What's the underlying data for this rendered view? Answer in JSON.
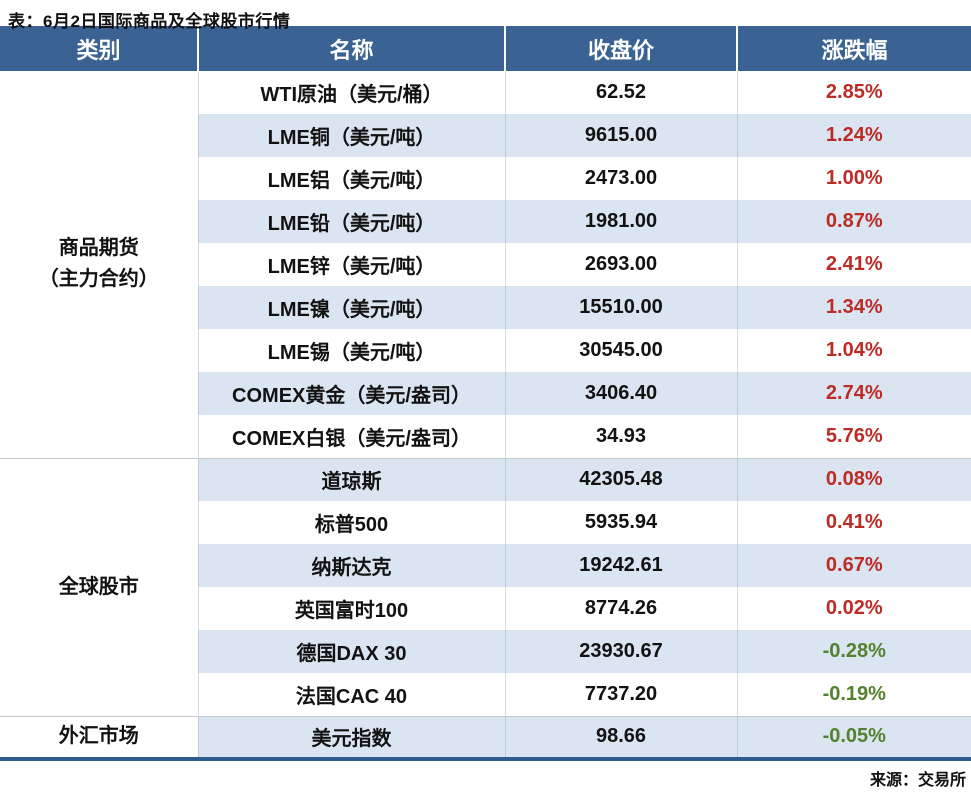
{
  "title": "表：6月2日国际商品及全球股市行情",
  "source": "来源：交易所",
  "colors": {
    "header_bg": "#3a6292",
    "stripe": "#dbe5f1",
    "up_red": "#bd2b25",
    "down_green": "#54812f",
    "bottom_border": "#2f5c8e"
  },
  "table": {
    "headers": [
      "类别",
      "名称",
      "收盘价",
      "涨跌幅"
    ],
    "groups": [
      {
        "category": "商品期货\n（主力合约）",
        "rows": [
          {
            "name": "WTI原油（美元/桶）",
            "close": "62.52",
            "change": "2.85%",
            "direction": "up"
          },
          {
            "name": "LME铜（美元/吨）",
            "close": "9615.00",
            "change": "1.24%",
            "direction": "up"
          },
          {
            "name": "LME铝（美元/吨）",
            "close": "2473.00",
            "change": "1.00%",
            "direction": "up"
          },
          {
            "name": "LME铅（美元/吨）",
            "close": "1981.00",
            "change": "0.87%",
            "direction": "up"
          },
          {
            "name": "LME锌（美元/吨）",
            "close": "2693.00",
            "change": "2.41%",
            "direction": "up"
          },
          {
            "name": "LME镍（美元/吨）",
            "close": "15510.00",
            "change": "1.34%",
            "direction": "up"
          },
          {
            "name": "LME锡（美元/吨）",
            "close": "30545.00",
            "change": "1.04%",
            "direction": "up"
          },
          {
            "name": "COMEX黄金（美元/盎司）",
            "close": "3406.40",
            "change": "2.74%",
            "direction": "up"
          },
          {
            "name": "COMEX白银（美元/盎司）",
            "close": "34.93",
            "change": "5.76%",
            "direction": "up"
          }
        ]
      },
      {
        "category": "全球股市",
        "rows": [
          {
            "name": "道琼斯",
            "close": "42305.48",
            "change": "0.08%",
            "direction": "up"
          },
          {
            "name": "标普500",
            "close": "5935.94",
            "change": "0.41%",
            "direction": "up"
          },
          {
            "name": "纳斯达克",
            "close": "19242.61",
            "change": "0.67%",
            "direction": "up"
          },
          {
            "name": "英国富时100",
            "close": "8774.26",
            "change": "0.02%",
            "direction": "up"
          },
          {
            "name": "德国DAX 30",
            "close": "23930.67",
            "change": "-0.28%",
            "direction": "down"
          },
          {
            "name": "法国CAC 40",
            "close": "7737.20",
            "change": "-0.19%",
            "direction": "down"
          }
        ]
      },
      {
        "category": "外汇市场",
        "rows": [
          {
            "name": "美元指数",
            "close": "98.66",
            "change": "-0.05%",
            "direction": "down"
          }
        ]
      }
    ]
  }
}
